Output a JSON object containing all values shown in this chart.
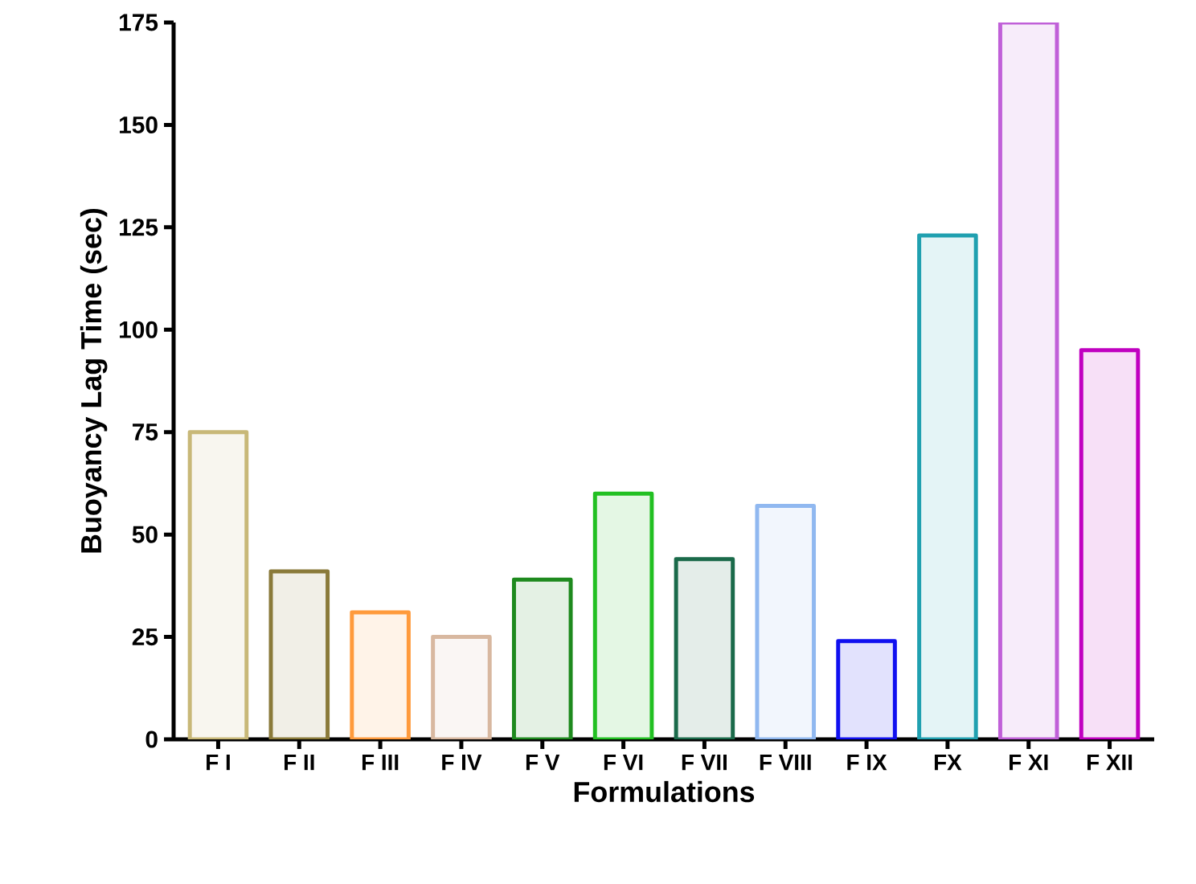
{
  "chart_data": {
    "type": "bar",
    "xlabel": "Formulations",
    "ylabel": "Buoyancy Lag Time (sec)",
    "categories": [
      "F I",
      "F II",
      "F III",
      "F IV",
      "F V",
      "F VI",
      "F VII",
      "F VIII",
      "F IX",
      "FX",
      "F XI",
      "F XII"
    ],
    "values": [
      75,
      41,
      31,
      25,
      39,
      60,
      44,
      57,
      24,
      123,
      175,
      95
    ],
    "colors": [
      "#c8b878",
      "#8a7a3a",
      "#ff9a3c",
      "#d8b8a0",
      "#1e8a1e",
      "#22c022",
      "#1a6a4a",
      "#90b8f0",
      "#1010f0",
      "#20a0b0",
      "#c060d8",
      "#c000c0"
    ],
    "ylim": [
      0,
      175
    ],
    "yticks": [
      0,
      25,
      50,
      75,
      100,
      125,
      150,
      175
    ],
    "grid": false
  }
}
